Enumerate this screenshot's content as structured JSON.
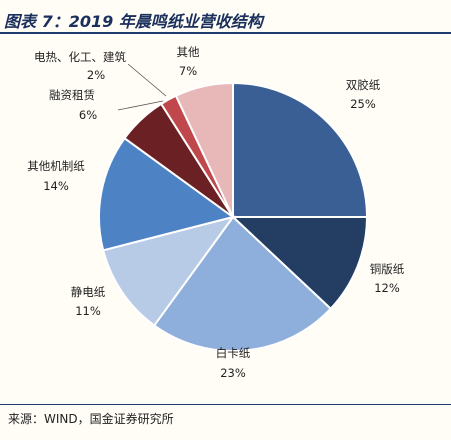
{
  "title": "图表 7：2019 年晨鸣纸业营收结构",
  "source": "来源：WIND，国金证券研究所",
  "chart_data": {
    "type": "pie",
    "slices": [
      {
        "label": "双胶纸",
        "value": 25,
        "color": "#3a5f95",
        "display": "25%"
      },
      {
        "label": "铜版纸",
        "value": 12,
        "color": "#233d63",
        "display": "12%"
      },
      {
        "label": "白卡纸",
        "value": 23,
        "color": "#8eaedb",
        "display": "23%"
      },
      {
        "label": "静电纸",
        "value": 11,
        "color": "#b7cae6",
        "display": "11%"
      },
      {
        "label": "其他机制纸",
        "value": 14,
        "color": "#4d83c4",
        "display": "14%"
      },
      {
        "label": "融资租赁",
        "value": 6,
        "color": "#6b2024",
        "display": "6%"
      },
      {
        "label": "电热、化工、建筑",
        "value": 2,
        "color": "#c0484d",
        "display": "2%"
      },
      {
        "label": "其他",
        "value": 7,
        "color": "#e8b8b8",
        "display": "7%"
      }
    ]
  }
}
